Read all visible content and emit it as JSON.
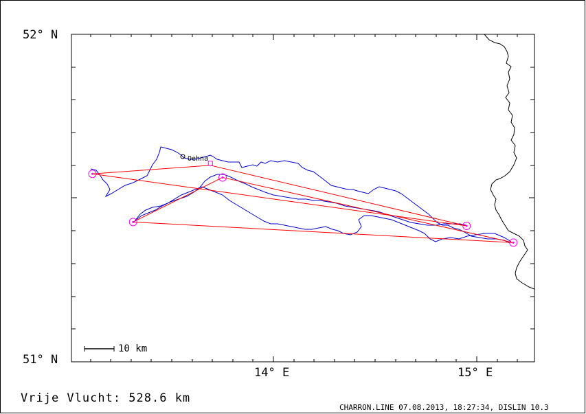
{
  "map": {
    "lat_labels": [
      {
        "value": 52,
        "text": "52° N"
      },
      {
        "value": 51,
        "text": "51° N"
      }
    ],
    "lon_labels": [
      {
        "value": 14,
        "text": "14° E"
      },
      {
        "value": 15,
        "text": "15° E"
      }
    ],
    "extent": {
      "lon_min": 13.0,
      "lon_max": 15.28,
      "lat_min": 51.0,
      "lat_max": 52.0
    },
    "scale_bar": {
      "label": "10 km"
    },
    "place": {
      "label": "Oehna"
    },
    "colors": {
      "track": "#0000cc",
      "legs": "#ff0000",
      "turnpoints": "#ff00ff",
      "border": "#000000"
    },
    "turnpoints": [
      {
        "lon": 13.11,
        "lat": 51.574
      },
      {
        "lon": 13.31,
        "lat": 51.427
      },
      {
        "lon": 13.75,
        "lat": 51.563
      },
      {
        "lon": 14.95,
        "lat": 51.415
      },
      {
        "lon": 15.18,
        "lat": 51.364
      }
    ],
    "legs": [
      [
        13.11,
        51.574,
        13.69,
        51.6
      ],
      [
        13.69,
        51.6,
        14.95,
        51.415
      ],
      [
        14.95,
        51.415,
        13.11,
        51.574
      ],
      [
        13.31,
        51.427,
        13.75,
        51.563
      ],
      [
        13.75,
        51.563,
        15.18,
        51.364
      ],
      [
        15.18,
        51.364,
        13.31,
        51.427
      ]
    ]
  },
  "footer": {
    "flight": "Vrije Vlucht:  528.6 km",
    "meta": "CHARRON.LINE 07.08.2013, 18:27:34, DISLIN 10.3"
  }
}
